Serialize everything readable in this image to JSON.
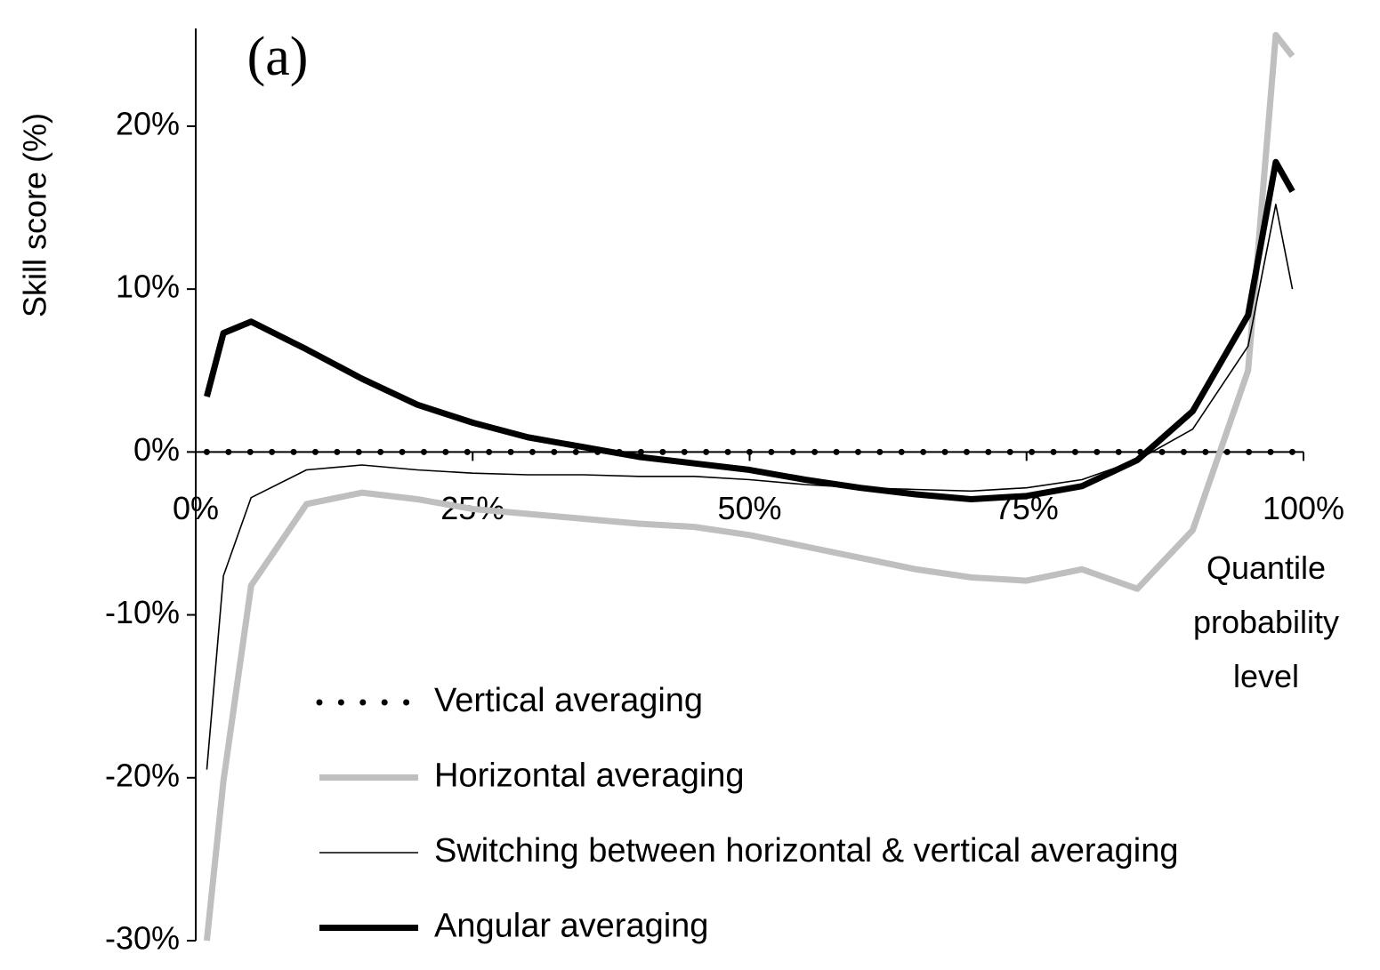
{
  "chart_data": {
    "type": "line",
    "annotation": "(a)",
    "y_label": "Skill score (%)",
    "x_label": "Quantile probability level",
    "x": [
      1,
      2.5,
      5,
      10,
      15,
      20,
      25,
      30,
      35,
      40,
      45,
      50,
      55,
      60,
      65,
      70,
      75,
      80,
      85,
      90,
      95,
      97.5,
      99
    ],
    "xlim": [
      0,
      100
    ],
    "xticks": [
      {
        "value": 0,
        "label": "0%"
      },
      {
        "value": 25,
        "label": "25%"
      },
      {
        "value": 50,
        "label": "50%"
      },
      {
        "value": 75,
        "label": "75%"
      },
      {
        "value": 100,
        "label": "100%"
      }
    ],
    "ylim": [
      -30,
      26
    ],
    "yticks": [
      {
        "value": -30,
        "label": "-30%"
      },
      {
        "value": -20,
        "label": "-20%"
      },
      {
        "value": -10,
        "label": "-10%"
      },
      {
        "value": 0,
        "label": "0%"
      },
      {
        "value": 10,
        "label": "10%"
      },
      {
        "value": 20,
        "label": "20%"
      }
    ],
    "grid": false,
    "legend": "bottom",
    "series": [
      {
        "name": "Vertical averaging",
        "color": "#000000",
        "style": "dotted",
        "values": [
          0,
          0,
          0,
          0,
          0,
          0,
          0,
          0,
          0,
          0,
          0,
          0,
          0,
          0,
          0,
          0,
          0,
          0,
          0,
          0,
          0,
          0,
          0
        ]
      },
      {
        "name": "Horizontal averaging",
        "color": "#bfbfbf",
        "style": "thick",
        "values": [
          -30,
          -20.2,
          -8.2,
          -3.2,
          -2.5,
          -2.9,
          -3.5,
          -3.8,
          -4.1,
          -4.4,
          -4.6,
          -5.1,
          -5.8,
          -6.5,
          -7.2,
          -7.7,
          -7.9,
          -7.2,
          -8.4,
          -4.8,
          5.0,
          25.6,
          24.3
        ]
      },
      {
        "name": "Switching between horizontal & vertical averaging",
        "color": "#000000",
        "style": "thin",
        "values": [
          -19.5,
          -7.6,
          -2.8,
          -1.1,
          -0.8,
          -1.1,
          -1.3,
          -1.4,
          -1.4,
          -1.5,
          -1.5,
          -1.7,
          -2.0,
          -2.2,
          -2.3,
          -2.4,
          -2.2,
          -1.7,
          -0.5,
          1.4,
          6.5,
          15.2,
          10.0
        ]
      },
      {
        "name": "Angular averaging",
        "color": "#000000",
        "style": "thick",
        "values": [
          3.4,
          7.3,
          8.0,
          6.3,
          4.5,
          2.9,
          1.8,
          0.9,
          0.3,
          -0.3,
          -0.7,
          -1.1,
          -1.7,
          -2.2,
          -2.6,
          -2.9,
          -2.7,
          -2.1,
          -0.5,
          2.5,
          8.4,
          17.8,
          16.0
        ]
      }
    ]
  }
}
